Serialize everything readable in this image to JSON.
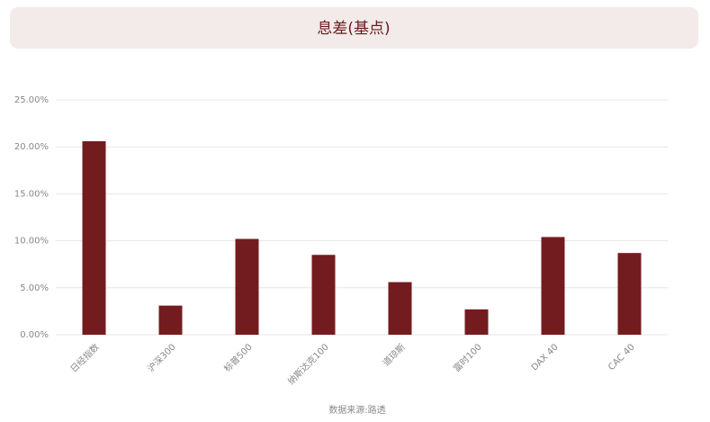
{
  "chart_data": {
    "type": "bar",
    "title": "息差(基点)",
    "categories": [
      "日经指数",
      "沪深300",
      "标普500",
      "纳斯达克100",
      "道琼斯",
      "富时100",
      "DAX 40",
      "CAC 40"
    ],
    "values": [
      20.6,
      3.1,
      10.2,
      8.5,
      5.6,
      2.7,
      10.4,
      8.7
    ],
    "color": "#731c1f",
    "ylim": [
      0,
      25
    ],
    "yticks": [
      {
        "value": 0,
        "label": "0.00%"
      },
      {
        "value": 5,
        "label": "5.00%"
      },
      {
        "value": 10,
        "label": "10.00%"
      },
      {
        "value": 15,
        "label": "15.00%"
      },
      {
        "value": 20,
        "label": "20.00%"
      },
      {
        "value": 25,
        "label": "25.00%"
      }
    ],
    "grid": true,
    "source": "数据来源:路透"
  }
}
